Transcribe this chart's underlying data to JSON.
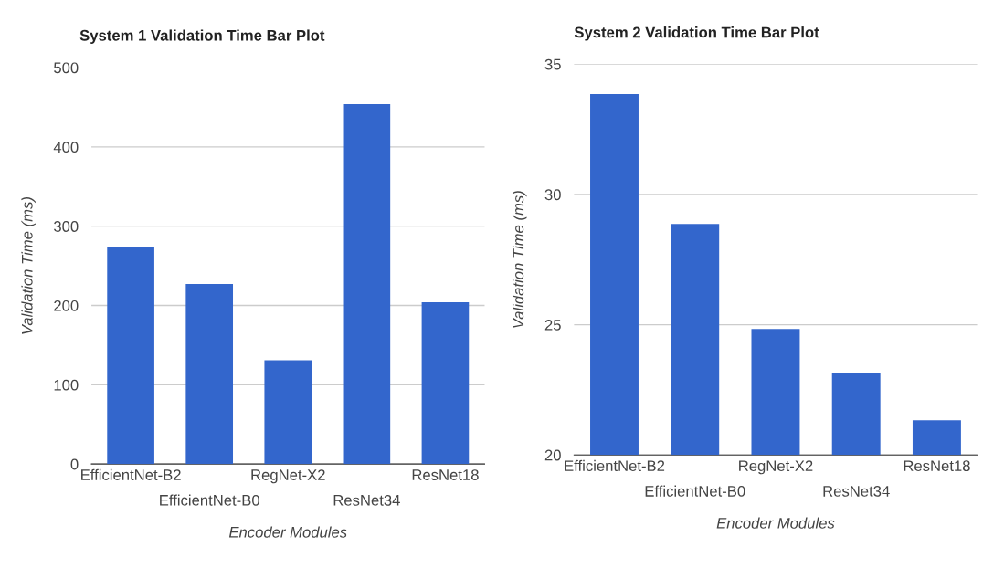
{
  "chart_data": [
    {
      "type": "bar",
      "title": "System 1 Validation Time Bar Plot",
      "xlabel": "Encoder Modules",
      "ylabel": "Validation Time (ms)",
      "categories": [
        "EfficientNet-B2",
        "EfficientNet-B0",
        "RegNet-X2",
        "ResNet34",
        "ResNet18"
      ],
      "values": [
        273,
        227,
        131,
        454,
        204
      ],
      "color": "#3366cc",
      "ylim": [
        0,
        500
      ],
      "yticks": [
        0,
        100,
        200,
        300,
        400,
        500
      ],
      "grid": "y",
      "legend": false
    },
    {
      "type": "bar",
      "title": "System 2 Validation Time Bar Plot",
      "xlabel": "Encoder Modules",
      "ylabel": "Validation Time (ms)",
      "categories": [
        "EfficientNet-B2",
        "EfficientNet-B0",
        "RegNet-X2",
        "ResNet34",
        "ResNet18"
      ],
      "values": [
        33.85,
        28.87,
        24.84,
        23.15,
        21.33
      ],
      "color": "#3366cc",
      "ylim": [
        20,
        35
      ],
      "yticks": [
        20,
        25,
        30,
        35
      ],
      "grid": "y",
      "legend": false
    }
  ]
}
